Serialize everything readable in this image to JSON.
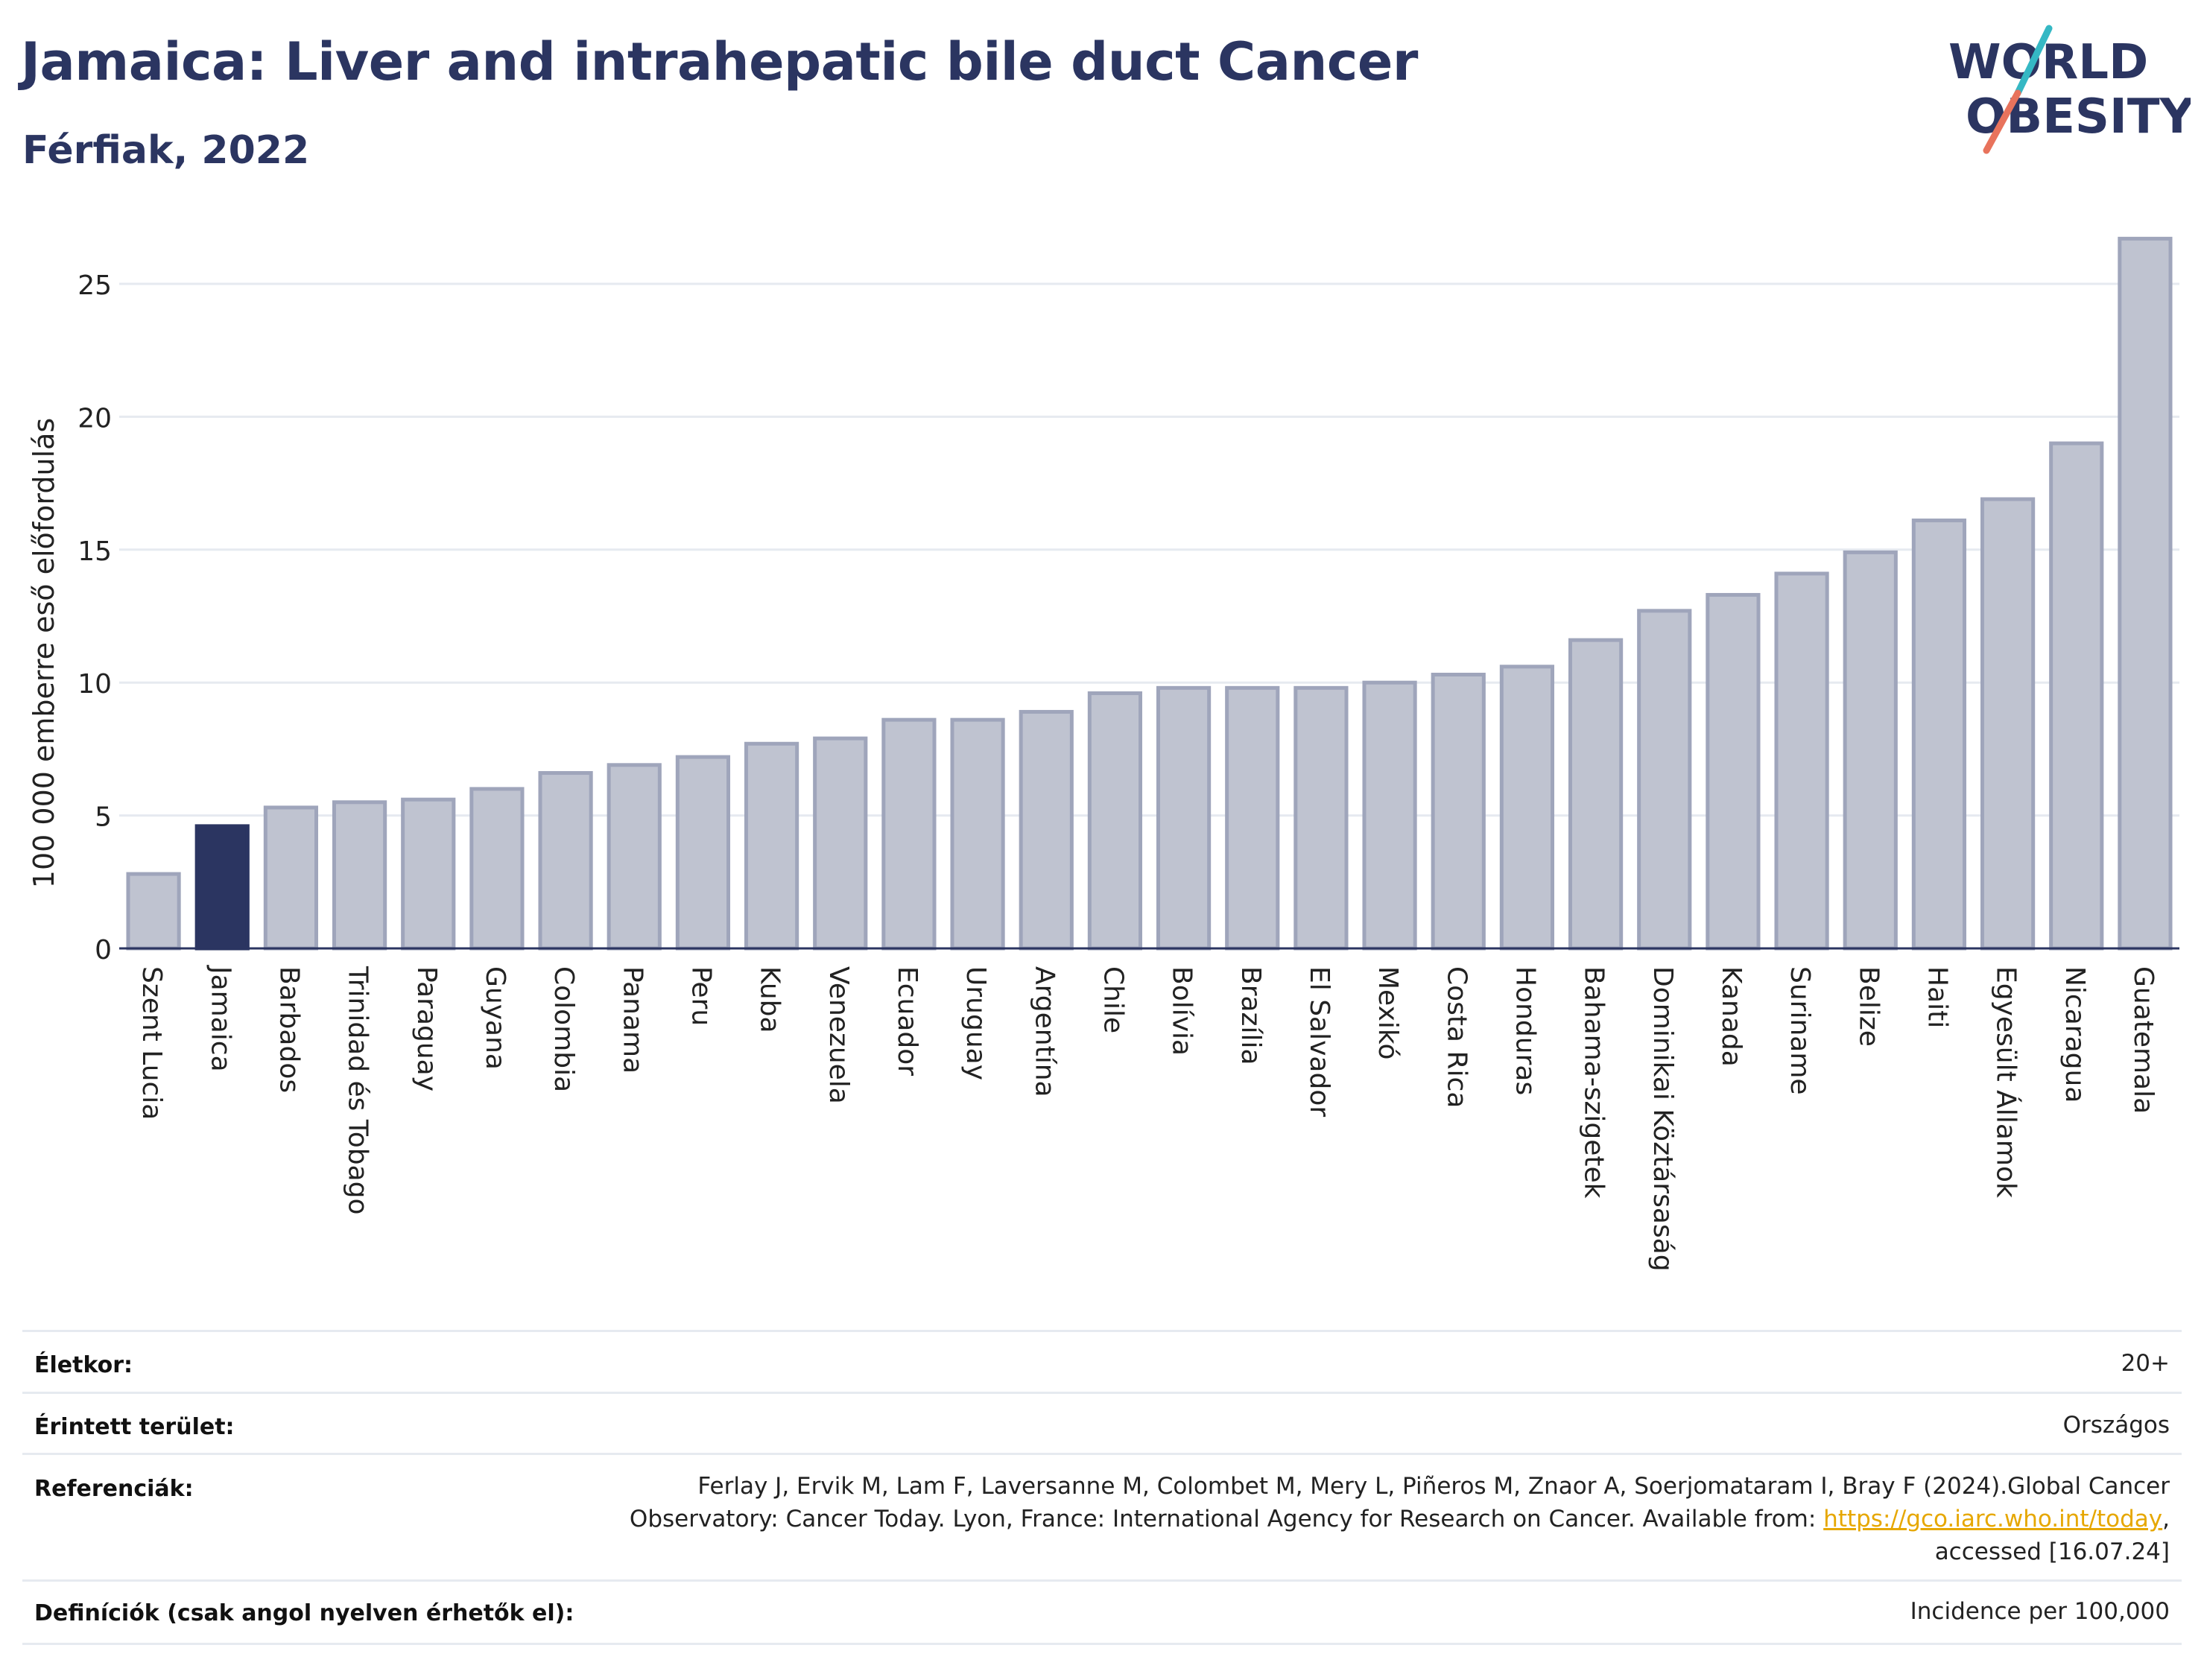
{
  "header": {
    "title": "Jamaica: Liver and intrahepatic bile duct Cancer",
    "subtitle": "Férfiak, 2022"
  },
  "logo": {
    "line1": "WORLD",
    "line2": "OBESITY",
    "colors": {
      "text": "#2b3561",
      "slash_top": "#35b8c4",
      "slash_bottom": "#e8735c"
    }
  },
  "colors": {
    "highlight": "#2b3561",
    "bar_fill": "#bfc3d0",
    "bar_stroke": "#9fa5bb",
    "grid": "#e6eaf0",
    "axis": "#2b3561"
  },
  "chart_data": {
    "type": "bar",
    "title": "Jamaica: Liver and intrahepatic bile duct Cancer",
    "subtitle": "Férfiak, 2022",
    "ylabel": "100 000 emberre eső előfordulás",
    "xlabel": "",
    "ylim": [
      0,
      27.5
    ],
    "yticks": [
      0,
      5,
      10,
      15,
      20,
      25
    ],
    "grid": true,
    "highlight": "Jamaica",
    "categories": [
      "Szent Lucia",
      "Jamaica",
      "Barbados",
      "Trinidad és Tobago",
      "Paraguay",
      "Guyana",
      "Colombia",
      "Panama",
      "Peru",
      "Kuba",
      "Venezuela",
      "Ecuador",
      "Uruguay",
      "Argentína",
      "Chile",
      "Bolívia",
      "Brazília",
      "El Salvador",
      "Mexikó",
      "Costa Rica",
      "Honduras",
      "Bahama-szigetek",
      "Dominikai Köztársaság",
      "Kanada",
      "Suriname",
      "Belize",
      "Haiti",
      "Egyesült Államok",
      "Nicaragua",
      "Guatemala"
    ],
    "values": [
      2.8,
      4.6,
      5.3,
      5.5,
      5.6,
      6.0,
      6.6,
      6.9,
      7.2,
      7.7,
      7.9,
      8.6,
      8.6,
      8.9,
      9.6,
      9.8,
      9.8,
      9.8,
      10.0,
      10.3,
      10.6,
      11.6,
      12.7,
      13.3,
      14.1,
      14.9,
      16.1,
      16.9,
      19.0,
      26.7
    ]
  },
  "info": {
    "age_label": "Életkor:",
    "age_value": "20+",
    "area_label": "Érintett terület:",
    "area_value": "Országos",
    "ref_label": "Referenciák:",
    "ref_line1": "Ferlay J, Ervik M, Lam F, Laversanne M, Colombet M, Mery L, Piñeros M, Znaor A, Soerjomataram I, Bray F (2024).Global Cancer",
    "ref_line2": "Observatory: Cancer Today. Lyon, France: International Agency for Research on Cancer. Available from: ",
    "ref_link": "https://gco.iarc.who.int/today",
    "ref_line2_end": ",",
    "ref_line3": "accessed [16.07.24]",
    "def_label": "Definíciók (csak angol nyelven érhetők el):",
    "def_value": "Incidence per 100,000"
  }
}
